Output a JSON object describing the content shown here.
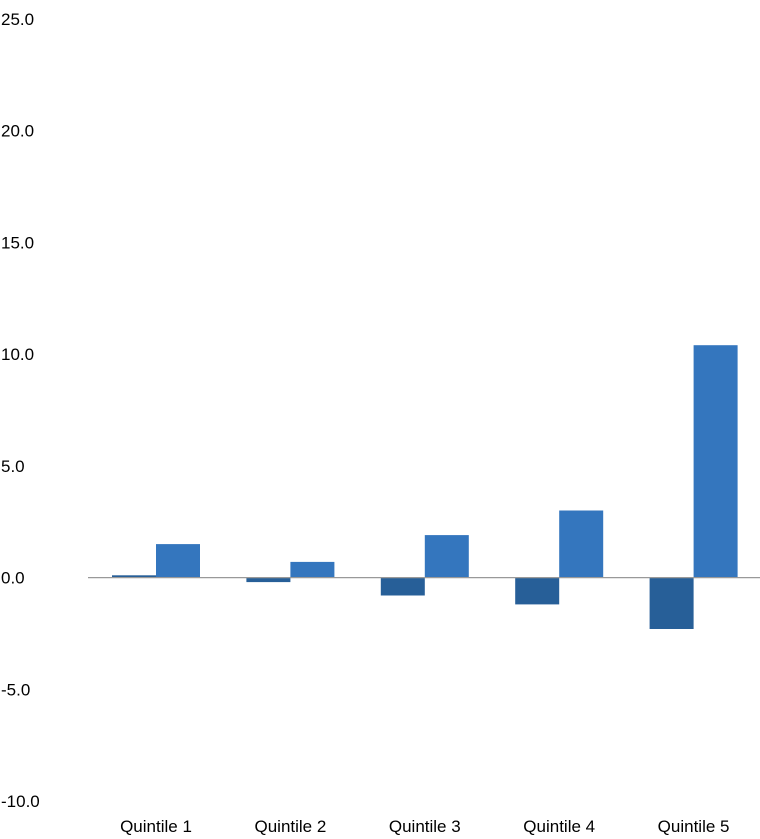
{
  "chart_data": {
    "type": "bar",
    "categories": [
      "Quintile 1",
      "Quintile 2",
      "Quintile 3",
      "Quintile 4",
      "Quintile 5"
    ],
    "series": [
      {
        "values": [
          0.1,
          -0.2,
          -0.8,
          -1.2,
          -2.3
        ],
        "color": "#275f98"
      },
      {
        "values": [
          1.5,
          0.7,
          1.9,
          3.0,
          10.4
        ],
        "color": "#3476be"
      }
    ],
    "yticks": [
      "25.0",
      "20.0",
      "15.0",
      "10.0",
      "5.0",
      "0.0",
      "-5.0",
      "-10.0"
    ],
    "ylim": [
      -10,
      25
    ],
    "title": "",
    "xlabel": "",
    "ylabel": "",
    "grid": false,
    "legend": "none",
    "zero_line_color": "#999999"
  }
}
